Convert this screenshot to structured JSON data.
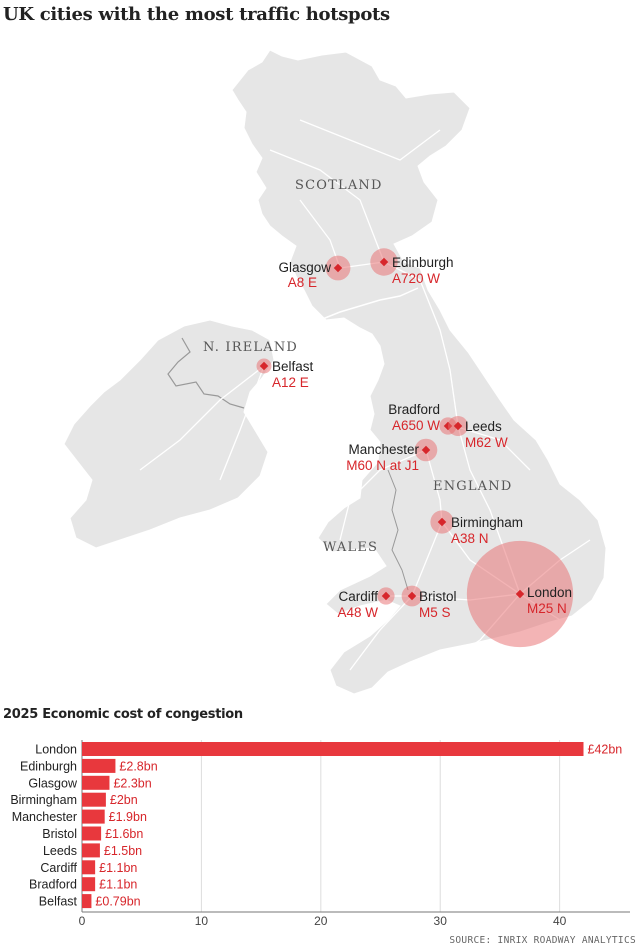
{
  "title": "UK cities with the most traffic hotspots",
  "map": {
    "regions": [
      "SCOTLAND",
      "N. IRELAND",
      "ENGLAND",
      "WALES"
    ],
    "cities": [
      {
        "name": "Glasgow",
        "road": "A8 E",
        "cost_bn": 2.3
      },
      {
        "name": "Edinburgh",
        "road": "A720 W",
        "cost_bn": 2.8
      },
      {
        "name": "Belfast",
        "road": "A12 E",
        "cost_bn": 0.79
      },
      {
        "name": "Bradford",
        "road": "A650 W",
        "cost_bn": 1.1
      },
      {
        "name": "Leeds",
        "road": "M62 W",
        "cost_bn": 1.5
      },
      {
        "name": "Manchester",
        "road": "M60 N at J1",
        "cost_bn": 1.9
      },
      {
        "name": "Birmingham",
        "road": "A38 N",
        "cost_bn": 2
      },
      {
        "name": "Cardiff",
        "road": "A48 W",
        "cost_bn": 1.1
      },
      {
        "name": "Bristol",
        "road": "M5 S",
        "cost_bn": 1.6
      },
      {
        "name": "London",
        "road": "M25 N",
        "cost_bn": 42
      }
    ],
    "colors": {
      "land": "#e6e6e6",
      "roads": "#ffffff",
      "border": "#999999",
      "bubble": "#e8696b",
      "marker": "#d7262b",
      "road_label": "#d7262b"
    }
  },
  "chart_title": "2025 Economic cost of congestion",
  "chart_data": {
    "type": "bar",
    "orientation": "horizontal",
    "categories": [
      "London",
      "Edinburgh",
      "Glasgow",
      "Birmingham",
      "Manchester",
      "Bristol",
      "Leeds",
      "Cardiff",
      "Bradford",
      "Belfast"
    ],
    "values": [
      42,
      2.8,
      2.3,
      2,
      1.9,
      1.6,
      1.5,
      1.1,
      1.1,
      0.79
    ],
    "value_labels": [
      "£42bn",
      "£2.8bn",
      "£2.3bn",
      "£2bn",
      "£1.9bn",
      "£1.6bn",
      "£1.5bn",
      "£1.1bn",
      "£1.1bn",
      "£0.79bn"
    ],
    "xlim": [
      0,
      45
    ],
    "xticks": [
      0,
      10,
      20,
      30,
      40
    ],
    "grid": true,
    "bar_color": "#e8383d",
    "label_color": "#d7262b"
  },
  "source": "SOURCE: INRIX ROADWAY ANALYTICS"
}
